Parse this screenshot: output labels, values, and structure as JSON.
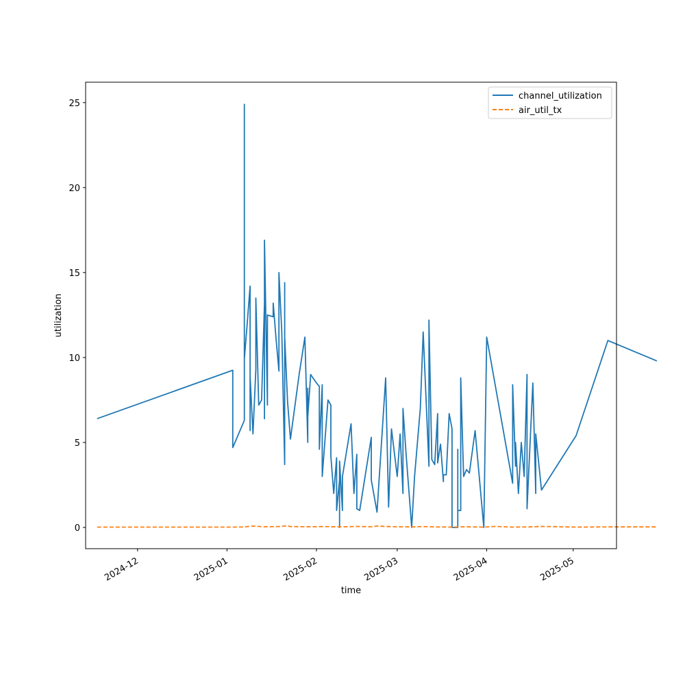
{
  "chart_data": {
    "type": "line",
    "xlabel": "time",
    "ylabel": "utilization",
    "x_axis_type": "date",
    "xlim": [
      "2024-11-13",
      "2025-05-16"
    ],
    "ylim": [
      -1.25,
      26.2
    ],
    "x_ticks": [
      "2024-12-01",
      "2025-01-01",
      "2025-02-01",
      "2025-03-01",
      "2025-04-01",
      "2025-05-01"
    ],
    "x_tick_labels": [
      "2024-12",
      "2025-01",
      "2025-02",
      "2025-03",
      "2025-04",
      "2025-05"
    ],
    "y_ticks": [
      0,
      5,
      10,
      15,
      20,
      25
    ],
    "y_tick_labels": [
      "0",
      "5",
      "10",
      "15",
      "20",
      "25"
    ],
    "grid": false,
    "legend_position": "top-right",
    "series": [
      {
        "name": "channel_utilization",
        "color": "#1f77b4",
        "dash": "solid",
        "points": [
          [
            "2024-11-17",
            6.4
          ],
          [
            "2025-01-03",
            9.25
          ],
          [
            "2025-01-03",
            4.7
          ],
          [
            "2025-01-07",
            6.3
          ],
          [
            "2025-01-07",
            24.9
          ],
          [
            "2025-01-07",
            9.9
          ],
          [
            "2025-01-08",
            12.0
          ],
          [
            "2025-01-09",
            14.2
          ],
          [
            "2025-01-09",
            5.7
          ],
          [
            "2025-01-09",
            8.9
          ],
          [
            "2025-01-10",
            5.5
          ],
          [
            "2025-01-11",
            9.3
          ],
          [
            "2025-01-11",
            13.5
          ],
          [
            "2025-01-12",
            7.2
          ],
          [
            "2025-01-13",
            7.5
          ],
          [
            "2025-01-14",
            13.2
          ],
          [
            "2025-01-14",
            6.4
          ],
          [
            "2025-01-14",
            16.9
          ],
          [
            "2025-01-15",
            7.2
          ],
          [
            "2025-01-15",
            12.5
          ],
          [
            "2025-01-17",
            12.4
          ],
          [
            "2025-01-17",
            13.2
          ],
          [
            "2025-01-18",
            11.1
          ],
          [
            "2025-01-19",
            9.2
          ],
          [
            "2025-01-19",
            15.0
          ],
          [
            "2025-01-20",
            11.5
          ],
          [
            "2025-01-21",
            3.7
          ],
          [
            "2025-01-21",
            14.4
          ],
          [
            "2025-01-21",
            11.2
          ],
          [
            "2025-01-22",
            7.4
          ],
          [
            "2025-01-23",
            5.2
          ],
          [
            "2025-01-26",
            9.0
          ],
          [
            "2025-01-28",
            11.2
          ],
          [
            "2025-01-29",
            5.0
          ],
          [
            "2025-01-29",
            8.2
          ],
          [
            "2025-01-29",
            6.5
          ],
          [
            "2025-01-30",
            9.0
          ],
          [
            "2025-02-01",
            8.5
          ],
          [
            "2025-02-02",
            8.3
          ],
          [
            "2025-02-02",
            4.6
          ],
          [
            "2025-02-03",
            8.4
          ],
          [
            "2025-02-03",
            3.0
          ],
          [
            "2025-02-05",
            7.5
          ],
          [
            "2025-02-06",
            7.2
          ],
          [
            "2025-02-06",
            4.2
          ],
          [
            "2025-02-07",
            2.0
          ],
          [
            "2025-02-08",
            4.1
          ],
          [
            "2025-02-08",
            1.0
          ],
          [
            "2025-02-09",
            2.8
          ],
          [
            "2025-02-09",
            0.0
          ],
          [
            "2025-02-09",
            3.9
          ],
          [
            "2025-02-10",
            1.0
          ],
          [
            "2025-02-10",
            3.0
          ],
          [
            "2025-02-13",
            6.1
          ],
          [
            "2025-02-14",
            2.0
          ],
          [
            "2025-02-15",
            4.3
          ],
          [
            "2025-02-15",
            1.1
          ],
          [
            "2025-02-16",
            1.0
          ],
          [
            "2025-02-20",
            5.3
          ],
          [
            "2025-02-20",
            2.8
          ],
          [
            "2025-02-22",
            0.9
          ],
          [
            "2025-02-25",
            8.8
          ],
          [
            "2025-02-26",
            1.2
          ],
          [
            "2025-02-27",
            5.8
          ],
          [
            "2025-03-01",
            3.0
          ],
          [
            "2025-03-02",
            5.5
          ],
          [
            "2025-03-03",
            2.0
          ],
          [
            "2025-03-03",
            7.0
          ],
          [
            "2025-03-04",
            4.5
          ],
          [
            "2025-03-06",
            0.0
          ],
          [
            "2025-03-07",
            3.0
          ],
          [
            "2025-03-09",
            7.0
          ],
          [
            "2025-03-10",
            11.5
          ],
          [
            "2025-03-12",
            3.6
          ],
          [
            "2025-03-12",
            12.2
          ],
          [
            "2025-03-13",
            4.0
          ],
          [
            "2025-03-14",
            3.7
          ],
          [
            "2025-03-15",
            6.7
          ],
          [
            "2025-03-15",
            3.8
          ],
          [
            "2025-03-16",
            4.9
          ],
          [
            "2025-03-17",
            2.7
          ],
          [
            "2025-03-17",
            3.1
          ],
          [
            "2025-03-18",
            3.1
          ],
          [
            "2025-03-19",
            6.7
          ],
          [
            "2025-03-20",
            5.8
          ],
          [
            "2025-03-20",
            0.0
          ],
          [
            "2025-03-20",
            0.0
          ],
          [
            "2025-03-22",
            0.0
          ],
          [
            "2025-03-22",
            4.6
          ],
          [
            "2025-03-22",
            1.0
          ],
          [
            "2025-03-23",
            1.0
          ],
          [
            "2025-03-23",
            8.8
          ],
          [
            "2025-03-24",
            3.0
          ],
          [
            "2025-03-25",
            3.4
          ],
          [
            "2025-03-26",
            3.2
          ],
          [
            "2025-03-28",
            5.7
          ],
          [
            "2025-03-31",
            0.0
          ],
          [
            "2025-04-01",
            11.2
          ],
          [
            "2025-04-10",
            2.6
          ],
          [
            "2025-04-10",
            8.4
          ],
          [
            "2025-04-11",
            3.6
          ],
          [
            "2025-04-11",
            5.0
          ],
          [
            "2025-04-12",
            2.0
          ],
          [
            "2025-04-13",
            5.0
          ],
          [
            "2025-04-14",
            3.0
          ],
          [
            "2025-04-15",
            9.0
          ],
          [
            "2025-04-15",
            1.1
          ],
          [
            "2025-04-17",
            8.5
          ],
          [
            "2025-04-18",
            2.0
          ],
          [
            "2025-04-18",
            5.5
          ],
          [
            "2025-04-20",
            2.2
          ],
          [
            "2025-05-02",
            5.4
          ],
          [
            "2025-05-13",
            11.0
          ],
          [
            "2025-05-30",
            9.8
          ]
        ]
      },
      {
        "name": "air_util_tx",
        "color": "#ff7f0e",
        "dash": "dashed",
        "points": [
          [
            "2024-11-17",
            0.02
          ],
          [
            "2024-12-10",
            0.02
          ],
          [
            "2025-01-03",
            0.02
          ],
          [
            "2025-01-07",
            0.03
          ],
          [
            "2025-01-10",
            0.08
          ],
          [
            "2025-01-14",
            0.04
          ],
          [
            "2025-01-19",
            0.05
          ],
          [
            "2025-01-22",
            0.1
          ],
          [
            "2025-01-23",
            0.05
          ],
          [
            "2025-01-30",
            0.04
          ],
          [
            "2025-02-03",
            0.05
          ],
          [
            "2025-02-09",
            0.03
          ],
          [
            "2025-02-15",
            0.06
          ],
          [
            "2025-02-20",
            0.04
          ],
          [
            "2025-02-22",
            0.08
          ],
          [
            "2025-02-28",
            0.04
          ],
          [
            "2025-03-06",
            0.03
          ],
          [
            "2025-03-10",
            0.05
          ],
          [
            "2025-03-14",
            0.03
          ],
          [
            "2025-03-20",
            0.02
          ],
          [
            "2025-03-24",
            0.04
          ],
          [
            "2025-03-31",
            0.02
          ],
          [
            "2025-04-04",
            0.06
          ],
          [
            "2025-04-10",
            0.02
          ],
          [
            "2025-04-16",
            0.03
          ],
          [
            "2025-04-20",
            0.06
          ],
          [
            "2025-05-02",
            0.02
          ],
          [
            "2025-05-13",
            0.03
          ],
          [
            "2025-05-30",
            0.03
          ]
        ]
      }
    ]
  }
}
